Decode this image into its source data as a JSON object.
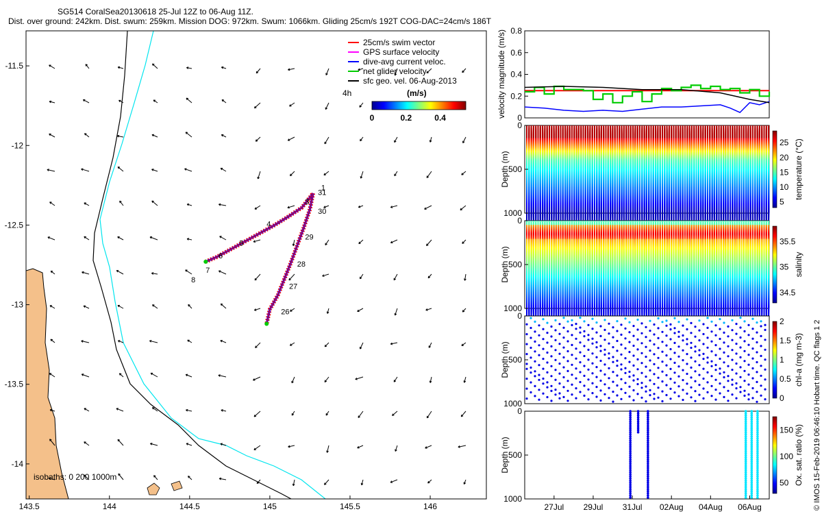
{
  "header": {
    "line1": "SG514 CoralSea20130618 25-Jul 12Z to 06-Aug 11Z.",
    "line2": "Dist. over ground: 242km. Dist. swum: 259km. Mission DOG: 972km. Swum: 1066km. Gliding 25cm/s 192T COG-DAC=24cm/s 186T"
  },
  "colors": {
    "land": "#f4c08a",
    "isobath200": "#00e5ee",
    "isobath1000": "#000000",
    "swim": "#ff0000",
    "gps": "#ff00ff",
    "dac": "#0000ff",
    "net": "#00cc00",
    "geo": "#000000"
  },
  "map": {
    "x_ticks": [
      "143.5",
      "144",
      "144.5",
      "145",
      "145.5",
      "146"
    ],
    "y_ticks": [
      "-11.5",
      "-12",
      "-12.5",
      "-13",
      "-13.5",
      "-14"
    ],
    "xlim": [
      143.48,
      146.35
    ],
    "ylim": [
      -14.22,
      -11.28
    ],
    "legend": [
      "25cm/s swim vector",
      "GPS surface velocity",
      "dive-avg current veloc.",
      "net glider velocity",
      "sfc geo. vel. 06-Aug-2013"
    ],
    "scale_label": "4h",
    "colorbar": {
      "unit": "(m/s)",
      "ticks": [
        "0",
        "0.2",
        "0.4"
      ],
      "range": [
        0,
        0.55
      ]
    },
    "isobath_label": "isobaths: 0   200  1000m",
    "day_labels": [
      {
        "t": "1",
        "lon": 145.32,
        "lat": -12.28
      },
      {
        "t": "31",
        "lon": 145.3,
        "lat": -12.31
      },
      {
        "t": "3",
        "lon": 145.22,
        "lat": -12.37
      },
      {
        "t": "30",
        "lon": 145.3,
        "lat": -12.43
      },
      {
        "t": "4",
        "lon": 144.98,
        "lat": -12.51
      },
      {
        "t": "29",
        "lon": 145.22,
        "lat": -12.59
      },
      {
        "t": "5",
        "lon": 144.81,
        "lat": -12.63
      },
      {
        "t": "6",
        "lon": 144.68,
        "lat": -12.71
      },
      {
        "t": "28",
        "lon": 145.17,
        "lat": -12.76
      },
      {
        "t": "7",
        "lon": 144.6,
        "lat": -12.8
      },
      {
        "t": "8",
        "lon": 144.51,
        "lat": -12.86
      },
      {
        "t": "27",
        "lon": 145.12,
        "lat": -12.9
      },
      {
        "t": "26",
        "lon": 145.07,
        "lat": -13.06
      }
    ],
    "track_out": [
      [
        144.6,
        -12.73
      ],
      [
        144.67,
        -12.7
      ],
      [
        144.76,
        -12.65
      ],
      [
        144.85,
        -12.6
      ],
      [
        144.94,
        -12.55
      ],
      [
        145.03,
        -12.5
      ],
      [
        145.11,
        -12.45
      ],
      [
        145.2,
        -12.39
      ],
      [
        145.27,
        -12.3
      ]
    ],
    "track_back": [
      [
        145.27,
        -12.3
      ],
      [
        145.25,
        -12.4
      ],
      [
        145.21,
        -12.52
      ],
      [
        145.17,
        -12.63
      ],
      [
        145.13,
        -12.74
      ],
      [
        145.09,
        -12.84
      ],
      [
        145.05,
        -12.94
      ],
      [
        145.0,
        -13.03
      ],
      [
        144.98,
        -13.12
      ]
    ]
  },
  "velocity": {
    "ylabel": "velocity magnitude (m/s)",
    "yticks": [
      "0",
      "0.2",
      "0.4",
      "0.6",
      "0.8"
    ],
    "ylim": [
      0,
      0.8
    ],
    "xlim": [
      0,
      12.5
    ],
    "swim": [
      [
        0,
        0.25
      ],
      [
        12.5,
        0.25
      ]
    ],
    "current": [
      [
        0,
        0.1
      ],
      [
        1,
        0.09
      ],
      [
        2,
        0.07
      ],
      [
        3,
        0.06
      ],
      [
        4,
        0.07
      ],
      [
        5,
        0.06
      ],
      [
        6,
        0.08
      ],
      [
        7,
        0.1
      ],
      [
        8,
        0.1
      ],
      [
        9,
        0.11
      ],
      [
        10,
        0.12
      ],
      [
        10.5,
        0.09
      ],
      [
        11,
        0.05
      ],
      [
        11.5,
        0.14
      ],
      [
        12,
        0.12
      ],
      [
        12.5,
        0.15
      ]
    ],
    "net": [
      [
        0,
        0.24
      ],
      [
        0.5,
        0.28
      ],
      [
        1,
        0.22
      ],
      [
        1.5,
        0.29
      ],
      [
        2,
        0.26
      ],
      [
        3,
        0.25
      ],
      [
        3.5,
        0.17
      ],
      [
        4,
        0.22
      ],
      [
        4.5,
        0.14
      ],
      [
        5,
        0.2
      ],
      [
        5.5,
        0.24
      ],
      [
        6,
        0.15
      ],
      [
        6.5,
        0.22
      ],
      [
        7,
        0.27
      ],
      [
        7.5,
        0.25
      ],
      [
        8,
        0.28
      ],
      [
        8.5,
        0.3
      ],
      [
        9,
        0.27
      ],
      [
        9.5,
        0.29
      ],
      [
        10,
        0.26
      ],
      [
        10.5,
        0.27
      ],
      [
        11,
        0.23
      ],
      [
        11.5,
        0.26
      ],
      [
        12,
        0.2
      ],
      [
        12.5,
        0.24
      ]
    ],
    "geo": [
      [
        0,
        0.28
      ],
      [
        2,
        0.29
      ],
      [
        4,
        0.28
      ],
      [
        6,
        0.26
      ],
      [
        8,
        0.26
      ],
      [
        10,
        0.23
      ],
      [
        11.5,
        0.17
      ],
      [
        12.5,
        0.14
      ]
    ]
  },
  "depth_panels": {
    "ylabel": "Depth (m)",
    "yticks": [
      "0",
      "500",
      "1000"
    ],
    "ylim": [
      0,
      1000
    ],
    "x_ticks": [
      "27Jul",
      "29Jul",
      "31Jul",
      "02Aug",
      "04Aug",
      "06Aug"
    ],
    "x_tick_days": [
      1.5,
      3.5,
      5.5,
      7.5,
      9.5,
      11.5
    ],
    "xlim": [
      0,
      12.5
    ],
    "temperature": {
      "label": "temperature (°C)",
      "ticks": [
        "5",
        "10",
        "15",
        "20",
        "25"
      ],
      "range": [
        3,
        29
      ]
    },
    "salinity": {
      "label": "salinity",
      "ticks": [
        "34.5",
        "35",
        "35.5"
      ],
      "range": [
        34.3,
        35.8
      ]
    },
    "chl": {
      "label": "chl-a (mg m-3)",
      "ticks": [
        "0",
        "0.5",
        "1",
        "1.5",
        "2"
      ],
      "range": [
        0,
        2
      ]
    },
    "oxy": {
      "label": "Ox. sat. ratio (%)",
      "ticks": [
        "50",
        "100",
        "150"
      ],
      "range": [
        30,
        175
      ]
    }
  },
  "side_note": "© IMOS 15-Feb-2019 06:46:10 Hobart time. QC flags 1  2"
}
